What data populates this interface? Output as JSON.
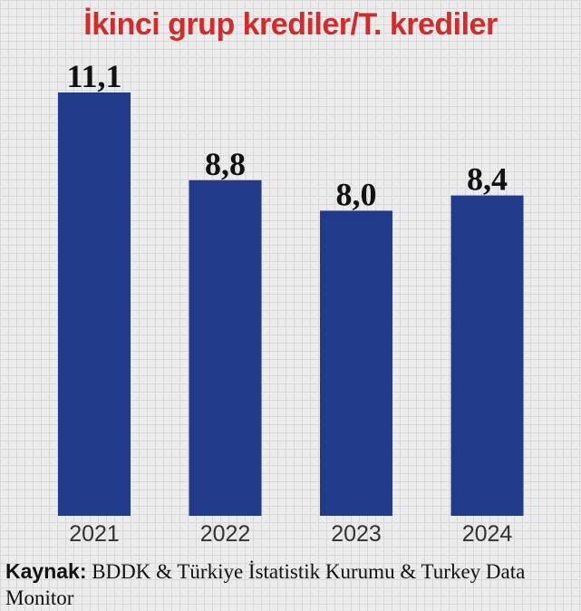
{
  "chart_data": {
    "type": "bar",
    "title": "İkinci grup krediler/T. krediler",
    "categories": [
      "2021",
      "2022",
      "2023",
      "2024"
    ],
    "values": [
      11.1,
      8.8,
      8.0,
      8.4
    ],
    "value_labels": [
      "11,1",
      "8,8",
      "8,0",
      "8,4"
    ],
    "xlabel": "",
    "ylabel": "",
    "ylim": [
      0,
      11.1
    ],
    "grid": false,
    "bar_color": "#213a8a",
    "title_color": "#d42a2a"
  },
  "source": {
    "label": "Kaynak:",
    "text": "BDDK & Türkiye İstatistik Kurumu & Turkey Data Monitor"
  }
}
